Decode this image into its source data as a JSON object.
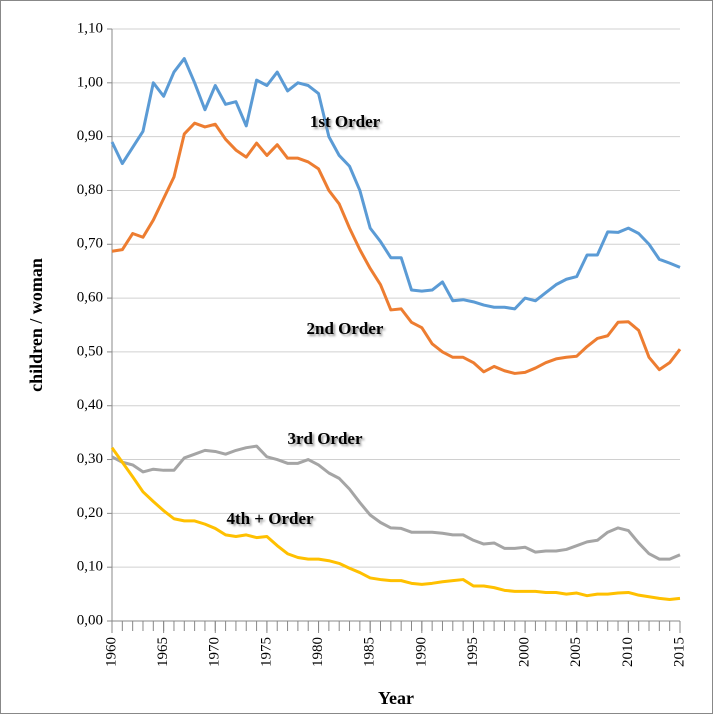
{
  "chart_data": {
    "type": "line",
    "y_label": "children / woman",
    "x_label": "Year",
    "x": [
      1960,
      1961,
      1962,
      1963,
      1964,
      1965,
      1966,
      1967,
      1968,
      1969,
      1970,
      1971,
      1972,
      1973,
      1974,
      1975,
      1976,
      1977,
      1978,
      1979,
      1980,
      1981,
      1982,
      1983,
      1984,
      1985,
      1986,
      1987,
      1988,
      1989,
      1990,
      1991,
      1992,
      1993,
      1994,
      1995,
      1996,
      1997,
      1998,
      1999,
      2000,
      2001,
      2002,
      2003,
      2004,
      2005,
      2006,
      2007,
      2008,
      2009,
      2010,
      2011,
      2012,
      2013,
      2014,
      2015
    ],
    "xlim": [
      1960,
      2015
    ],
    "xticks": [
      1960,
      1965,
      1970,
      1975,
      1980,
      1985,
      1990,
      1995,
      2000,
      2005,
      2010,
      2015
    ],
    "ylim": [
      0,
      1.1
    ],
    "yticks": [
      {
        "value": 0,
        "label": "0,00"
      },
      {
        "value": 0.1,
        "label": "0,10"
      },
      {
        "value": 0.2,
        "label": "0,20"
      },
      {
        "value": 0.3,
        "label": "0,30"
      },
      {
        "value": 0.4,
        "label": "0,40"
      },
      {
        "value": 0.5,
        "label": "0,50"
      },
      {
        "value": 0.6,
        "label": "0,60"
      },
      {
        "value": 0.7,
        "label": "0,70"
      },
      {
        "value": 0.8,
        "label": "0,80"
      },
      {
        "value": 0.9,
        "label": "0,90"
      },
      {
        "value": 1.0,
        "label": "1,00"
      },
      {
        "value": 1.1,
        "label": "1,10"
      }
    ],
    "grid": true,
    "series": [
      {
        "name": "1st Order",
        "color": "#5b9bd5",
        "values": [
          0.89,
          0.85,
          0.88,
          0.91,
          1.0,
          0.975,
          1.02,
          1.045,
          1.0,
          0.95,
          0.995,
          0.96,
          0.965,
          0.92,
          1.005,
          0.995,
          1.02,
          0.985,
          1.0,
          0.995,
          0.98,
          0.9,
          0.865,
          0.845,
          0.8,
          0.73,
          0.705,
          0.675,
          0.675,
          0.615,
          0.613,
          0.615,
          0.63,
          0.595,
          0.597,
          0.593,
          0.587,
          0.583,
          0.583,
          0.58,
          0.6,
          0.595,
          0.61,
          0.625,
          0.635,
          0.64,
          0.68,
          0.68,
          0.723,
          0.722,
          0.73,
          0.72,
          0.7,
          0.672,
          0.665,
          0.657
        ]
      },
      {
        "name": "2nd Order",
        "color": "#ed7d31",
        "values": [
          0.687,
          0.69,
          0.72,
          0.713,
          0.745,
          0.785,
          0.825,
          0.905,
          0.925,
          0.918,
          0.923,
          0.895,
          0.875,
          0.862,
          0.888,
          0.865,
          0.885,
          0.86,
          0.86,
          0.853,
          0.84,
          0.8,
          0.775,
          0.73,
          0.69,
          0.655,
          0.625,
          0.578,
          0.58,
          0.555,
          0.545,
          0.515,
          0.5,
          0.49,
          0.49,
          0.48,
          0.463,
          0.473,
          0.465,
          0.46,
          0.462,
          0.47,
          0.48,
          0.487,
          0.49,
          0.492,
          0.51,
          0.525,
          0.53,
          0.555,
          0.556,
          0.54,
          0.49,
          0.467,
          0.48,
          0.505
        ]
      },
      {
        "name": "3rd Order",
        "color": "#a5a5a5",
        "values": [
          0.305,
          0.295,
          0.29,
          0.277,
          0.282,
          0.28,
          0.28,
          0.303,
          0.31,
          0.317,
          0.315,
          0.31,
          0.317,
          0.322,
          0.325,
          0.305,
          0.3,
          0.293,
          0.293,
          0.3,
          0.29,
          0.275,
          0.265,
          0.245,
          0.22,
          0.197,
          0.183,
          0.173,
          0.172,
          0.165,
          0.165,
          0.165,
          0.163,
          0.16,
          0.16,
          0.15,
          0.143,
          0.145,
          0.135,
          0.135,
          0.137,
          0.128,
          0.13,
          0.13,
          0.133,
          0.14,
          0.147,
          0.15,
          0.165,
          0.173,
          0.168,
          0.145,
          0.125,
          0.115,
          0.115,
          0.123
        ]
      },
      {
        "name": "4th + Order",
        "color": "#ffc000",
        "values": [
          0.322,
          0.295,
          0.268,
          0.24,
          0.222,
          0.205,
          0.19,
          0.186,
          0.186,
          0.18,
          0.172,
          0.16,
          0.157,
          0.16,
          0.155,
          0.157,
          0.14,
          0.125,
          0.118,
          0.115,
          0.115,
          0.112,
          0.107,
          0.098,
          0.09,
          0.08,
          0.077,
          0.075,
          0.075,
          0.07,
          0.068,
          0.07,
          0.073,
          0.075,
          0.077,
          0.065,
          0.065,
          0.062,
          0.057,
          0.055,
          0.055,
          0.055,
          0.053,
          0.053,
          0.05,
          0.052,
          0.047,
          0.05,
          0.05,
          0.052,
          0.053,
          0.048,
          0.045,
          0.042,
          0.04,
          0.042
        ]
      }
    ]
  }
}
